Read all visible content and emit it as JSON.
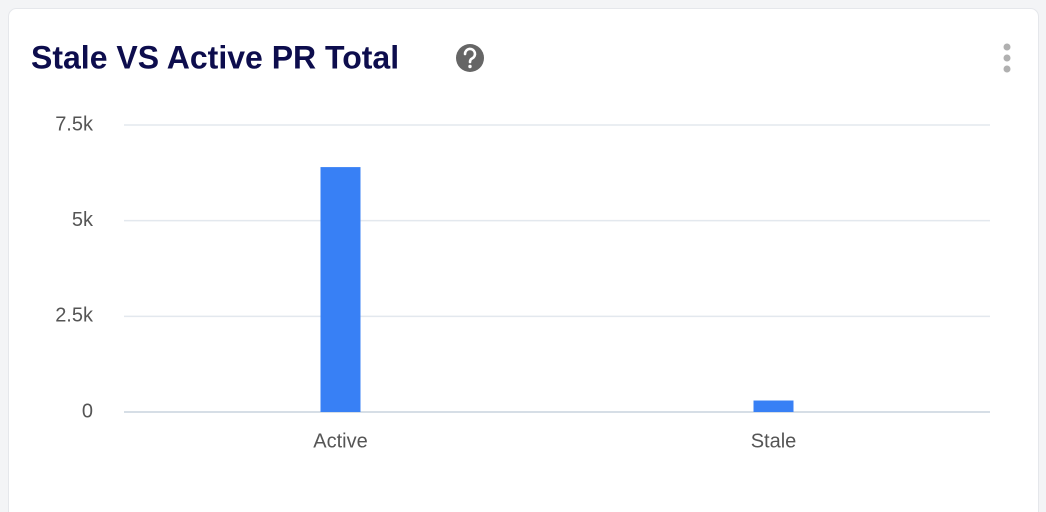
{
  "chart_data": {
    "type": "bar",
    "title": "Stale VS Active PR Total",
    "categories": [
      "Active",
      "Stale"
    ],
    "values": [
      6400,
      300
    ],
    "color": "#3880f5",
    "ylim": [
      0,
      7500
    ],
    "yticks": [
      0,
      {
        "value": 2500,
        "label": "2.5k"
      },
      {
        "value": 5000,
        "label": "5k"
      },
      {
        "value": 7500,
        "label": "7.5k"
      }
    ],
    "grid": true
  }
}
